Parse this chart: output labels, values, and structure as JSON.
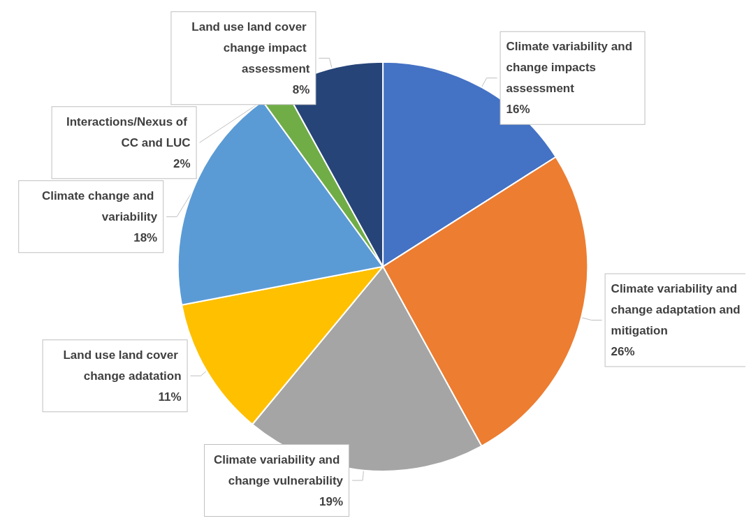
{
  "chart_data": {
    "type": "pie",
    "categories": [
      "Climate variability and change impacts assessment",
      "Climate variability and change adaptation and mitigation",
      "Climate variability and change vulnerability",
      "Land use land cover change adatation",
      "Climate change and variability",
      "Interactions/Nexus of CC and LUC",
      "Land use land cover change impact assessment"
    ],
    "values": [
      16,
      26,
      19,
      11,
      18,
      2,
      8
    ],
    "colors": [
      "#4472c4",
      "#ed7d31",
      "#a5a5a5",
      "#ffc000",
      "#5b9bd5",
      "#70ad47",
      "#264478"
    ],
    "value_labels": [
      "16%",
      "26%",
      "19%",
      "11%",
      "18%",
      "2%",
      "8%"
    ],
    "legend": false
  }
}
